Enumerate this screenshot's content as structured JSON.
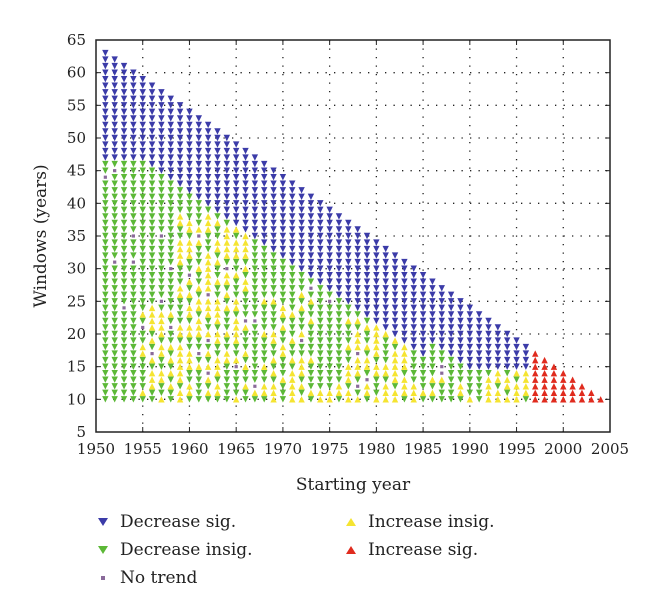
{
  "chart_data": {
    "type": "scatter",
    "title": "",
    "xlabel": "Starting year",
    "ylabel": "Windows (years)",
    "xlim": [
      1950,
      2005
    ],
    "ylim": [
      5,
      65
    ],
    "xticks": [
      1950,
      1955,
      1960,
      1965,
      1970,
      1975,
      1980,
      1985,
      1990,
      1995,
      2000,
      2005
    ],
    "yticks": [
      5,
      10,
      15,
      20,
      25,
      30,
      35,
      40,
      45,
      50,
      55,
      60,
      65
    ],
    "grid": true,
    "legend_position": "bottom",
    "x_range": [
      1951,
      2004
    ],
    "y_range": [
      10,
      63
    ],
    "series": [
      {
        "name": "Decrease sig.",
        "color": "#3b3ba8",
        "marker": "triangle-down"
      },
      {
        "name": "Decrease insig.",
        "color": "#5cb837",
        "marker": "triangle-down"
      },
      {
        "name": "No trend",
        "color": "#8a6a9a",
        "marker": "square"
      },
      {
        "name": "Increase insig.",
        "color": "#f5e431",
        "marker": "triangle-up"
      },
      {
        "name": "Increase sig.",
        "color": "#e02b1e",
        "marker": "triangle-up"
      }
    ]
  }
}
